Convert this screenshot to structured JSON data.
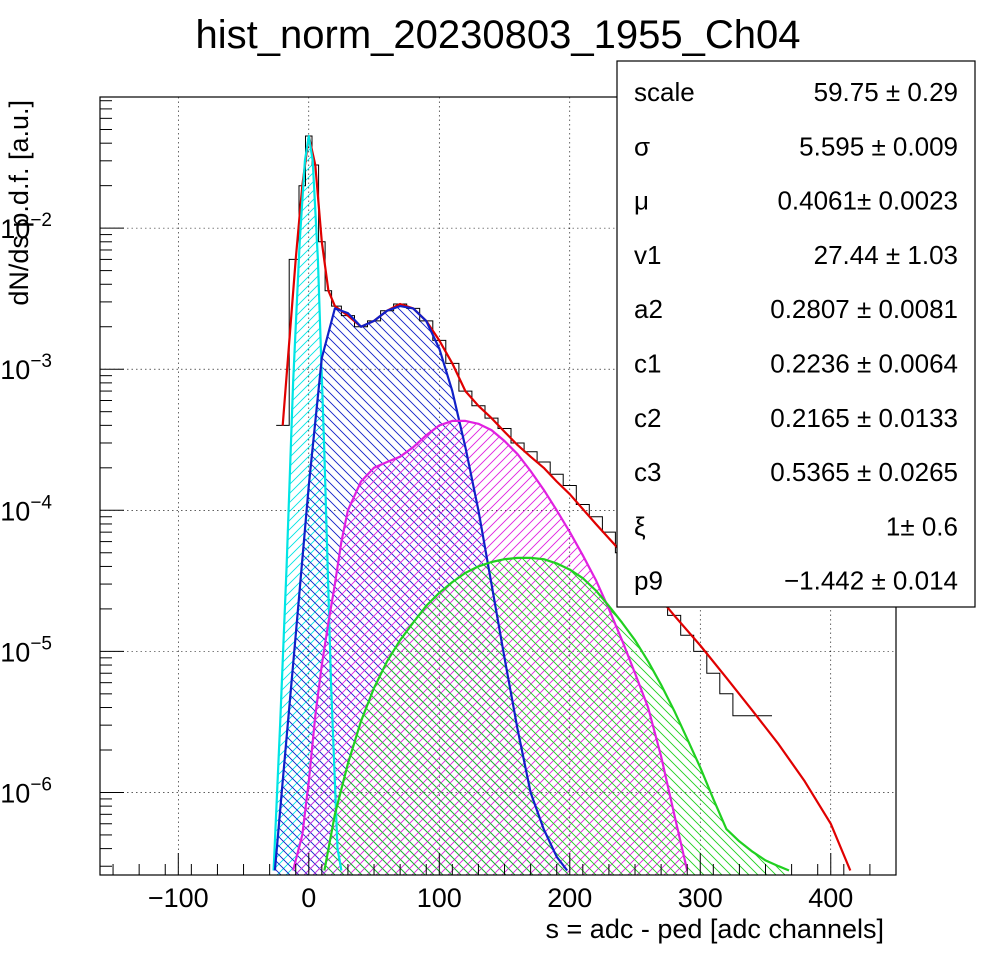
{
  "chart_data": {
    "type": "line",
    "title": "hist_norm_20230803_1955_Ch04",
    "xlabel": "s = adc - ped [adc channels]",
    "ylabel": "dN/ds p.d.f. [a.u.]",
    "xlim": [
      -160,
      450
    ],
    "ylim": [
      2.6e-07,
      0.085
    ],
    "yscale": "log",
    "grid": true,
    "x_ticks": [
      -100,
      0,
      100,
      200,
      300,
      400
    ],
    "x_tick_labels": [
      "−100",
      "0",
      "100",
      "200",
      "300",
      "400"
    ],
    "y_ticks": [
      {
        "value": 1e-06,
        "base": "10",
        "exp": "−6"
      },
      {
        "value": 1e-05,
        "base": "10",
        "exp": "−5"
      },
      {
        "value": 0.0001,
        "base": "10",
        "exp": "−4"
      },
      {
        "value": 0.001,
        "base": "10",
        "exp": "−3"
      },
      {
        "value": 0.01,
        "base": "10",
        "exp": "−2"
      }
    ],
    "series": [
      {
        "color": "#000000",
        "style": "histogram",
        "x": [
          -20,
          -10,
          -5,
          0,
          5,
          10,
          15,
          20,
          30,
          40,
          50,
          60,
          70,
          80,
          90,
          100,
          110,
          120,
          130,
          140,
          150,
          160,
          170,
          180,
          190,
          200,
          210,
          220,
          230,
          240,
          250,
          260,
          270,
          280,
          290,
          300,
          310,
          320,
          330,
          340,
          350
        ],
        "values": [
          0.0004,
          0.006,
          0.02,
          0.045,
          0.028,
          0.008,
          0.0036,
          0.0028,
          0.0024,
          0.002,
          0.0022,
          0.0026,
          0.0029,
          0.0027,
          0.0022,
          0.0016,
          0.0011,
          0.0007,
          0.00055,
          0.00045,
          0.00038,
          0.0003,
          0.00026,
          0.00022,
          0.00018,
          0.00015,
          0.00011,
          9e-05,
          7e-05,
          5e-05,
          4e-05,
          3.2e-05,
          2.5e-05,
          1.8e-05,
          1.3e-05,
          1e-05,
          7e-06,
          5e-06,
          3.5e-06,
          3.5e-06,
          3.5e-06
        ]
      },
      {
        "color": "#e00000",
        "style": "line",
        "x": [
          -20,
          -10,
          -5,
          0,
          5,
          10,
          15,
          20,
          30,
          40,
          50,
          60,
          70,
          80,
          90,
          100,
          110,
          120,
          130,
          140,
          150,
          160,
          170,
          180,
          190,
          200,
          220,
          240,
          260,
          280,
          300,
          320,
          340,
          360,
          380,
          400,
          415
        ],
        "values": [
          0.0004,
          0.006,
          0.02,
          0.045,
          0.028,
          0.008,
          0.0036,
          0.0028,
          0.0024,
          0.002,
          0.0022,
          0.0026,
          0.0029,
          0.0027,
          0.0022,
          0.0016,
          0.0011,
          0.0007,
          0.00055,
          0.00045,
          0.00036,
          0.00029,
          0.00024,
          0.0002,
          0.00016,
          0.00013,
          8e-05,
          5e-05,
          3e-05,
          1.8e-05,
          1.1e-05,
          6.5e-06,
          3.8e-06,
          2.2e-06,
          1.2e-06,
          6e-07,
          2.8e-07
        ]
      },
      {
        "color": "#00e5e5",
        "style": "filled",
        "hatch": "right",
        "x": [
          -27,
          -22,
          -17,
          -12,
          -7,
          -3,
          0,
          3,
          7,
          12,
          17,
          22,
          25
        ],
        "values": [
          2.8e-07,
          3e-06,
          4e-05,
          0.0008,
          0.008,
          0.03,
          0.045,
          0.03,
          0.006,
          0.00025,
          6e-06,
          4e-07,
          2.8e-07
        ]
      },
      {
        "color": "#1020c8",
        "style": "filled",
        "hatch": "left",
        "x": [
          -26,
          -20,
          -10,
          0,
          10,
          20,
          30,
          40,
          50,
          60,
          70,
          80,
          90,
          100,
          110,
          120,
          130,
          140,
          150,
          160,
          170,
          180,
          190,
          198
        ],
        "values": [
          2.8e-07,
          1.2e-06,
          1.3e-05,
          0.00015,
          0.0012,
          0.0027,
          0.0025,
          0.002,
          0.0022,
          0.0026,
          0.0028,
          0.0027,
          0.0022,
          0.0014,
          0.0007,
          0.00028,
          0.0001,
          3e-05,
          9e-06,
          2.8e-06,
          1e-06,
          5.5e-07,
          3.5e-07,
          2.8e-07
        ]
      },
      {
        "color": "#e020e0",
        "style": "filled",
        "hatch": "right",
        "x": [
          -12,
          -5,
          0,
          5,
          10,
          15,
          20,
          25,
          30,
          40,
          50,
          60,
          70,
          80,
          90,
          100,
          110,
          120,
          130,
          140,
          150,
          160,
          170,
          180,
          190,
          200,
          210,
          220,
          230,
          240,
          250,
          260,
          270,
          280,
          290
        ],
        "values": [
          2.8e-07,
          5e-07,
          1.2e-06,
          3.5e-06,
          8e-06,
          1.6e-05,
          3e-05,
          6e-05,
          0.0001,
          0.00016,
          0.0002,
          0.00022,
          0.00024,
          0.00028,
          0.00034,
          0.0004,
          0.00043,
          0.00043,
          0.00041,
          0.00037,
          0.00031,
          0.00025,
          0.00019,
          0.00014,
          0.0001,
          7e-05,
          4.8e-05,
          3.2e-05,
          2e-05,
          1.2e-05,
          7e-06,
          4e-06,
          1.8e-06,
          7e-07,
          2.8e-07
        ]
      },
      {
        "color": "#20d020",
        "style": "filled",
        "hatch": "left",
        "x": [
          12,
          20,
          30,
          40,
          50,
          60,
          70,
          80,
          90,
          100,
          110,
          120,
          130,
          140,
          150,
          160,
          170,
          180,
          190,
          200,
          210,
          220,
          230,
          240,
          250,
          260,
          270,
          280,
          290,
          300,
          310,
          320,
          330,
          340,
          350,
          360,
          368
        ],
        "values": [
          2.8e-07,
          7e-07,
          1.6e-06,
          3.2e-06,
          5.5e-06,
          8.5e-06,
          1.2e-05,
          1.6e-05,
          2.1e-05,
          2.6e-05,
          3.1e-05,
          3.6e-05,
          4e-05,
          4.3e-05,
          4.5e-05,
          4.6e-05,
          4.6e-05,
          4.5e-05,
          4.2e-05,
          3.8e-05,
          3.3e-05,
          2.7e-05,
          2.1e-05,
          1.6e-05,
          1.2e-05,
          8.5e-06,
          5.8e-06,
          3.8e-06,
          2.4e-06,
          1.5e-06,
          9e-07,
          5.5e-07,
          4.5e-07,
          3.8e-07,
          3.3e-07,
          3e-07,
          2.8e-07
        ]
      }
    ]
  },
  "stats": [
    {
      "name": "scale",
      "value": "59.75 ± 0.29"
    },
    {
      "name": "σ",
      "value": "5.595 ± 0.009"
    },
    {
      "name": "μ",
      "value": "0.4061± 0.0023"
    },
    {
      "name": "v1",
      "value": "27.44 ± 1.03"
    },
    {
      "name": "a2",
      "value": "0.2807 ± 0.0081"
    },
    {
      "name": "c1",
      "value": "0.2236 ± 0.0064"
    },
    {
      "name": "c2",
      "value": "0.2165 ± 0.0133"
    },
    {
      "name": "c3",
      "value": "0.5365 ± 0.0265"
    },
    {
      "name": "ξ",
      "value": "1± 0.6"
    },
    {
      "name": "p9",
      "value": "−1.442 ± 0.014"
    }
  ]
}
